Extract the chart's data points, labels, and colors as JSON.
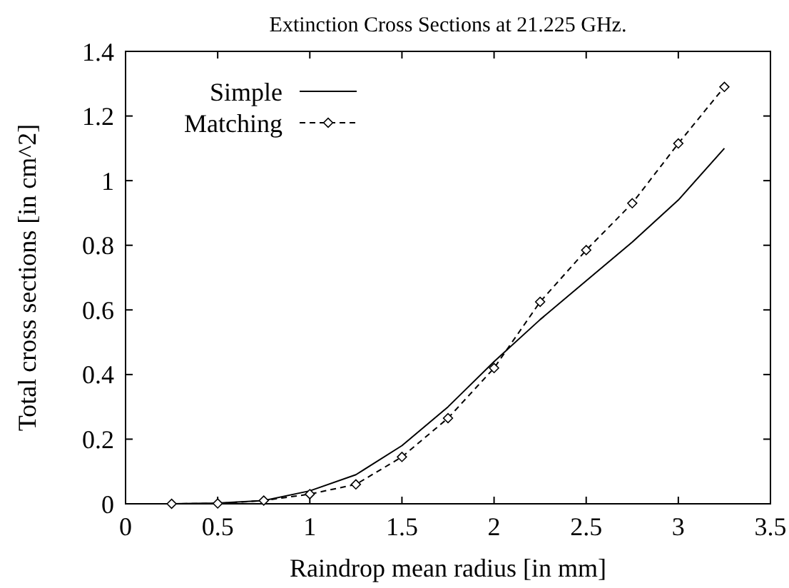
{
  "chart_data": {
    "type": "line",
    "title": "Extinction Cross Sections at 21.225 GHz.",
    "xlabel": "Raindrop mean radius [in mm]",
    "ylabel": "Total cross sections [in cm^2]",
    "x": [
      0.25,
      0.5,
      0.75,
      1,
      1.25,
      1.5,
      1.75,
      2,
      2.25,
      2.5,
      2.75,
      3,
      3.25
    ],
    "series": [
      {
        "name": "Simple",
        "color": "#000000",
        "marker": "none",
        "line_style": "solid",
        "values": [
          0,
          0.002,
          0.01,
          0.04,
          0.09,
          0.18,
          0.3,
          0.44,
          0.57,
          0.69,
          0.81,
          0.94,
          1.1
        ]
      },
      {
        "name": "Matching",
        "color": "#000000",
        "marker": "diamond",
        "line_style": "dashed",
        "values": [
          0,
          0.001,
          0.01,
          0.03,
          0.06,
          0.145,
          0.265,
          0.42,
          0.625,
          0.785,
          0.93,
          1.115,
          1.29
        ]
      }
    ],
    "xlim": [
      0,
      3.5
    ],
    "xticks": [
      0,
      0.5,
      1,
      1.5,
      2,
      2.5,
      3,
      3.5
    ],
    "ylim": [
      0,
      1.4
    ],
    "yticks": [
      0,
      0.2,
      0.4,
      0.6,
      0.8,
      1,
      1.2,
      1.4
    ],
    "grid": false,
    "legend": "top left"
  }
}
